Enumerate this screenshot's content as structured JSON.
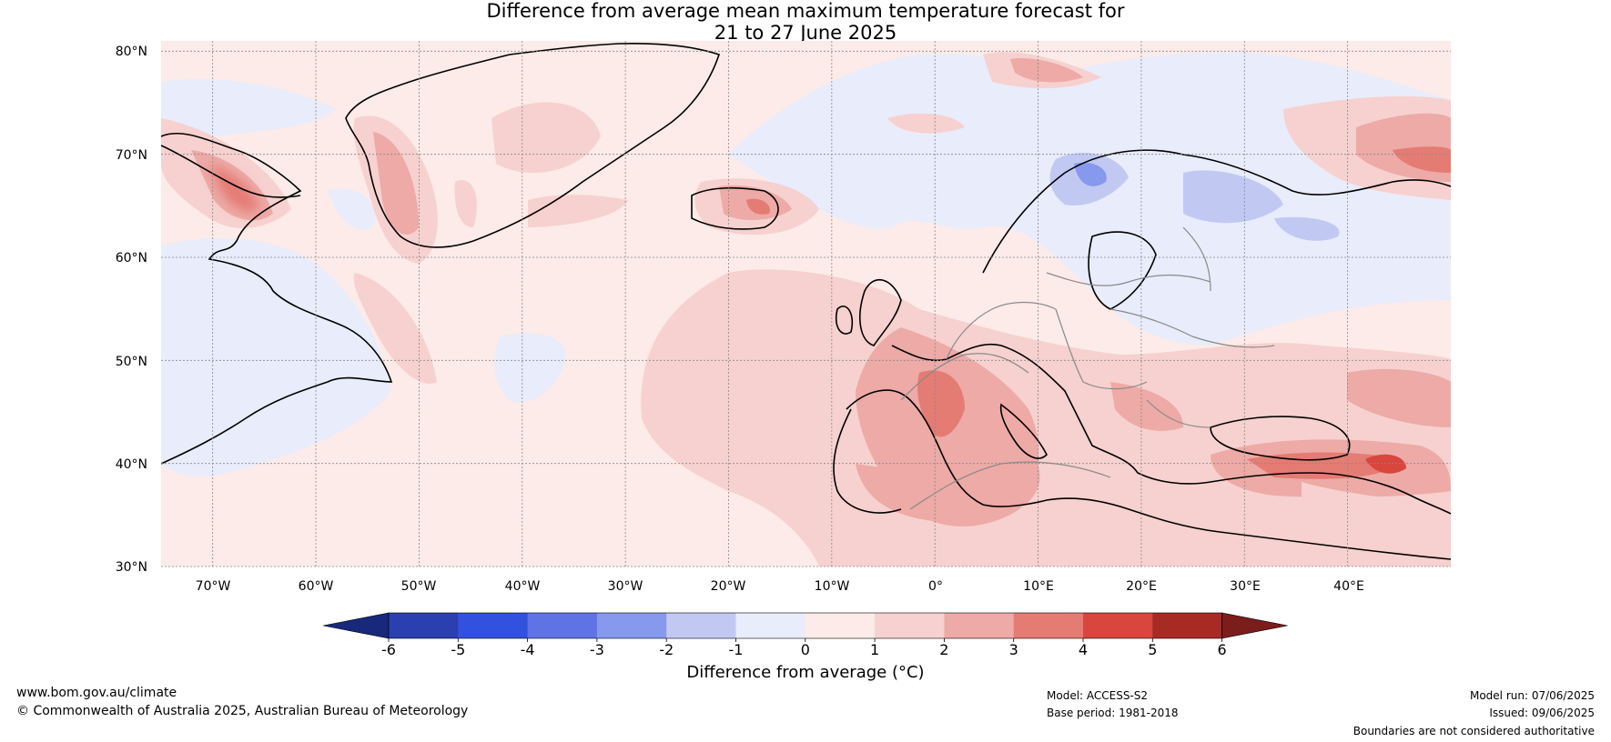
{
  "title": {
    "line1": "Difference from average mean maximum temperature forecast for",
    "line2": "21 to 27 June 2025"
  },
  "map": {
    "lat_labels": [
      "80°N",
      "70°N",
      "60°N",
      "50°N",
      "40°N",
      "30°N"
    ],
    "lon_labels": [
      "70°W",
      "60°W",
      "50°W",
      "40°W",
      "30°W",
      "20°W",
      "10°W",
      "0°",
      "10°E",
      "20°E",
      "30°E",
      "40°E"
    ],
    "extent": {
      "lon": [
        -75,
        50
      ],
      "lat": [
        30,
        81
      ]
    }
  },
  "colorbar": {
    "ticks": [
      "-6",
      "-5",
      "-4",
      "-3",
      "-2",
      "-1",
      "0",
      "1",
      "2",
      "3",
      "4",
      "5",
      "6"
    ],
    "colors": [
      "#18287a",
      "#2a3fb0",
      "#3351df",
      "#5f73e4",
      "#8799ec",
      "#c1c9f3",
      "#e9ecfb",
      "#fcebe8",
      "#f6d1cf",
      "#edaaa6",
      "#e47c74",
      "#d8463e",
      "#a82a25",
      "#7a1d1b"
    ],
    "label": "Difference from average (°C)"
  },
  "footer": {
    "url": "www.bom.gov.au/climate",
    "copyright": "© Commonwealth of Australia 2025, Australian Bureau of Meteorology",
    "model": "Model: ACCESS-S2",
    "base_period": "Base period: 1981-2018",
    "model_run": "Model run: 07/06/2025",
    "issued": "Issued: 09/06/2025",
    "disclaimer": "Boundaries are not considered authoritative"
  }
}
